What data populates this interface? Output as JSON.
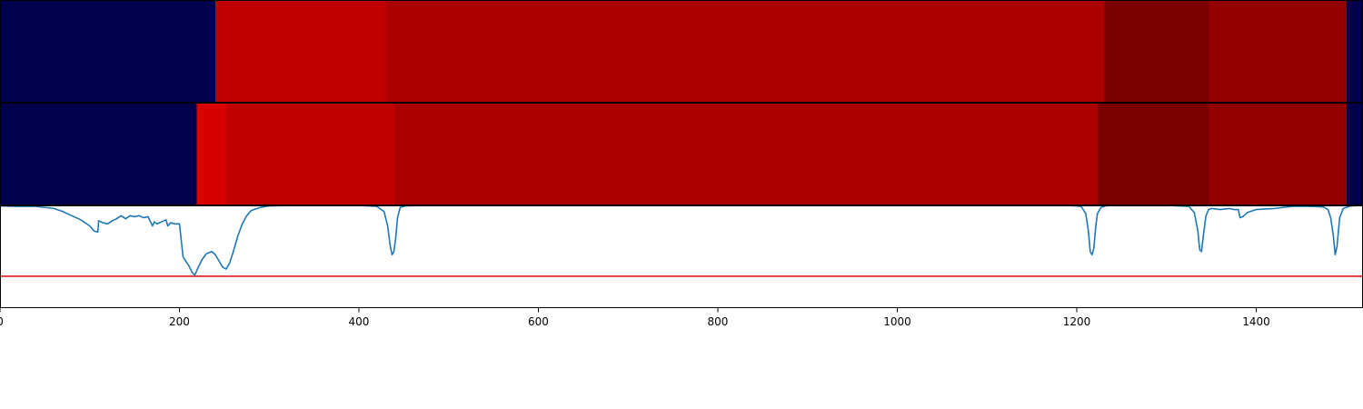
{
  "chart_data": {
    "type": "heatmap",
    "xlim": [
      0,
      1519
    ],
    "x_ticks": [
      0,
      200,
      400,
      600,
      800,
      1000,
      1200,
      1400
    ],
    "x_tick_labels": [
      "0",
      "200",
      "400",
      "600",
      "800",
      "1000",
      "1200",
      "1400"
    ],
    "heatmap_rows": [
      {
        "segments": [
          {
            "start": 0,
            "end": 240,
            "color": "#00004c"
          },
          {
            "start": 240,
            "end": 431,
            "color": "#c00000"
          },
          {
            "start": 431,
            "end": 1231,
            "color": "#aa0000"
          },
          {
            "start": 1231,
            "end": 1347,
            "color": "#7a0000"
          },
          {
            "start": 1347,
            "end": 1501,
            "color": "#920000"
          },
          {
            "start": 1501,
            "end": 1519,
            "color": "#00004c"
          }
        ]
      },
      {
        "segments": [
          {
            "start": 0,
            "end": 219,
            "color": "#00004c"
          },
          {
            "start": 219,
            "end": 252,
            "color": "#d80000"
          },
          {
            "start": 252,
            "end": 440,
            "color": "#c00000"
          },
          {
            "start": 440,
            "end": 1224,
            "color": "#aa0000"
          },
          {
            "start": 1224,
            "end": 1347,
            "color": "#7a0000"
          },
          {
            "start": 1347,
            "end": 1501,
            "color": "#920000"
          },
          {
            "start": 1501,
            "end": 1519,
            "color": "#00004c"
          }
        ]
      }
    ],
    "line_panel": {
      "ylim": [
        0,
        1
      ],
      "threshold": 0.31,
      "threshold_color": "#e41a1c",
      "series": [
        {
          "color": "#1f77b4",
          "x": [
            0,
            20,
            40,
            60,
            70,
            80,
            90,
            100,
            105,
            109,
            110,
            115,
            120,
            125,
            130,
            135,
            140,
            145,
            150,
            155,
            160,
            165,
            170,
            172,
            175,
            180,
            185,
            187,
            190,
            195,
            200,
            204,
            206,
            210,
            214,
            217,
            220,
            225,
            230,
            236,
            240,
            244,
            248,
            252,
            256,
            260,
            265,
            270,
            275,
            280,
            290,
            300,
            320,
            350,
            400,
            420,
            428,
            432,
            435,
            437,
            439,
            441,
            443,
            446,
            452,
            470,
            500,
            800,
            1100,
            1190,
            1205,
            1210,
            1213,
            1215,
            1217,
            1219,
            1221,
            1223,
            1227,
            1232,
            1240,
            1260,
            1300,
            1325,
            1331,
            1335,
            1337,
            1339,
            1341,
            1344,
            1347,
            1350,
            1360,
            1370,
            1375,
            1380,
            1382,
            1385,
            1390,
            1400,
            1420,
            1440,
            1460,
            1475,
            1480,
            1483,
            1486,
            1488,
            1490,
            1493,
            1497,
            1505,
            1519
          ],
          "y": [
            0.995,
            0.99,
            0.99,
            0.97,
            0.94,
            0.9,
            0.86,
            0.8,
            0.75,
            0.74,
            0.85,
            0.83,
            0.82,
            0.85,
            0.87,
            0.9,
            0.87,
            0.9,
            0.89,
            0.9,
            0.88,
            0.89,
            0.8,
            0.84,
            0.82,
            0.84,
            0.86,
            0.8,
            0.83,
            0.82,
            0.82,
            0.5,
            0.47,
            0.42,
            0.35,
            0.32,
            0.38,
            0.47,
            0.53,
            0.55,
            0.52,
            0.46,
            0.4,
            0.38,
            0.44,
            0.55,
            0.7,
            0.82,
            0.9,
            0.95,
            0.98,
            0.995,
            1.0,
            1.0,
            1.0,
            0.99,
            0.94,
            0.8,
            0.6,
            0.52,
            0.55,
            0.68,
            0.88,
            0.98,
            0.995,
            1.0,
            1.0,
            1.0,
            1.0,
            1.0,
            0.99,
            0.92,
            0.75,
            0.55,
            0.52,
            0.58,
            0.78,
            0.92,
            0.98,
            0.995,
            1.0,
            1.0,
            1.0,
            0.99,
            0.93,
            0.75,
            0.57,
            0.55,
            0.7,
            0.9,
            0.96,
            0.97,
            0.96,
            0.97,
            0.96,
            0.96,
            0.88,
            0.89,
            0.93,
            0.96,
            0.97,
            0.99,
            0.99,
            0.985,
            0.96,
            0.88,
            0.7,
            0.52,
            0.6,
            0.88,
            0.97,
            0.995,
            1.0
          ]
        }
      ]
    }
  }
}
